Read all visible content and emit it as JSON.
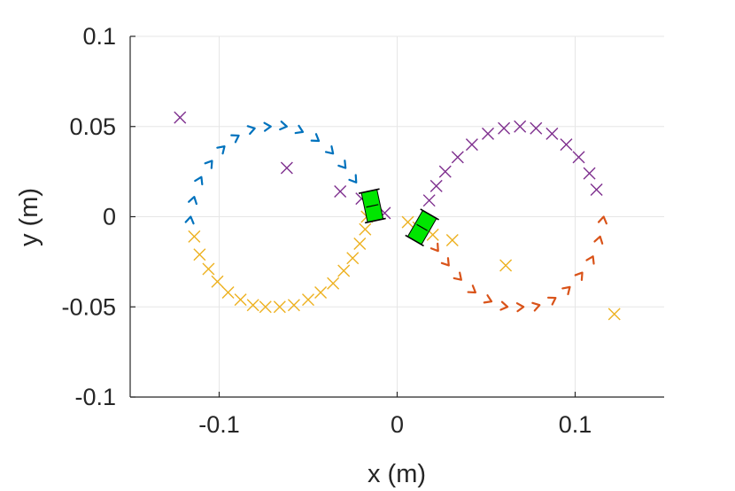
{
  "chart_data": {
    "type": "scatter",
    "title": "",
    "xlabel": "x (m)",
    "ylabel": "y (m)",
    "xlim": [
      -0.15,
      0.15
    ],
    "ylim": [
      -0.1,
      0.1
    ],
    "xticks": [
      -0.1,
      0,
      0.1
    ],
    "xtick_labels": [
      "-0.1",
      "0",
      "0.1"
    ],
    "yticks": [
      -0.1,
      -0.05,
      0,
      0.05,
      0.1
    ],
    "ytick_labels": [
      "-0.1",
      "-0.05",
      "0",
      "0.05",
      "0.1"
    ],
    "grid": true,
    "legend": "none",
    "series": [
      {
        "marker": "arrow",
        "color": "#0072bd",
        "x": [
          -0.116,
          -0.114,
          -0.11,
          -0.104,
          -0.097,
          -0.089,
          -0.08,
          -0.071,
          -0.062,
          -0.053,
          -0.044,
          -0.036,
          -0.029,
          -0.023
        ],
        "y": [
          0.0,
          0.011,
          0.022,
          0.031,
          0.039,
          0.045,
          0.049,
          0.05,
          0.05,
          0.047,
          0.042,
          0.035,
          0.027,
          0.019
        ]
      },
      {
        "marker": "x",
        "color": "#edb120",
        "x": [
          -0.114,
          -0.111,
          -0.106,
          -0.101,
          -0.095,
          -0.088,
          -0.081,
          -0.074,
          -0.066,
          -0.058,
          -0.05,
          -0.043,
          -0.036,
          -0.03,
          -0.025,
          -0.021,
          -0.018,
          -0.017,
          0.006,
          0.012,
          0.02,
          0.031,
          0.061,
          0.122
        ],
        "y": [
          -0.011,
          -0.021,
          -0.029,
          -0.036,
          -0.042,
          -0.046,
          -0.049,
          -0.05,
          -0.05,
          -0.049,
          -0.046,
          -0.042,
          -0.037,
          -0.03,
          -0.023,
          -0.015,
          -0.007,
          0.0,
          -0.003,
          -0.006,
          -0.01,
          -0.013,
          -0.027,
          -0.054
        ]
      },
      {
        "marker": "x",
        "color": "#7e2f8e",
        "x": [
          -0.122,
          -0.062,
          -0.032,
          -0.02,
          -0.007,
          0.018,
          0.022,
          0.027,
          0.034,
          0.042,
          0.051,
          0.06,
          0.069,
          0.078,
          0.087,
          0.095,
          0.102,
          0.108,
          0.112
        ],
        "y": [
          0.055,
          0.027,
          0.014,
          0.01,
          0.002,
          0.009,
          0.017,
          0.025,
          0.033,
          0.04,
          0.046,
          0.049,
          0.05,
          0.049,
          0.046,
          0.04,
          0.033,
          0.024,
          0.015
        ]
      },
      {
        "marker": "arrow",
        "color": "#d95319",
        "x": [
          0.023,
          0.029,
          0.036,
          0.044,
          0.053,
          0.062,
          0.071,
          0.08,
          0.089,
          0.097,
          0.104,
          0.11,
          0.114,
          0.116
        ],
        "y": [
          -0.019,
          -0.027,
          -0.035,
          -0.042,
          -0.047,
          -0.05,
          -0.05,
          -0.049,
          -0.045,
          -0.039,
          -0.031,
          -0.022,
          -0.011,
          0.0
        ]
      }
    ],
    "robots": [
      {
        "x": -0.014,
        "y": 0.006,
        "heading_deg": 102,
        "color": "#00e600"
      },
      {
        "x": 0.014,
        "y": -0.006,
        "heading_deg": 60,
        "color": "#00e600"
      }
    ]
  }
}
